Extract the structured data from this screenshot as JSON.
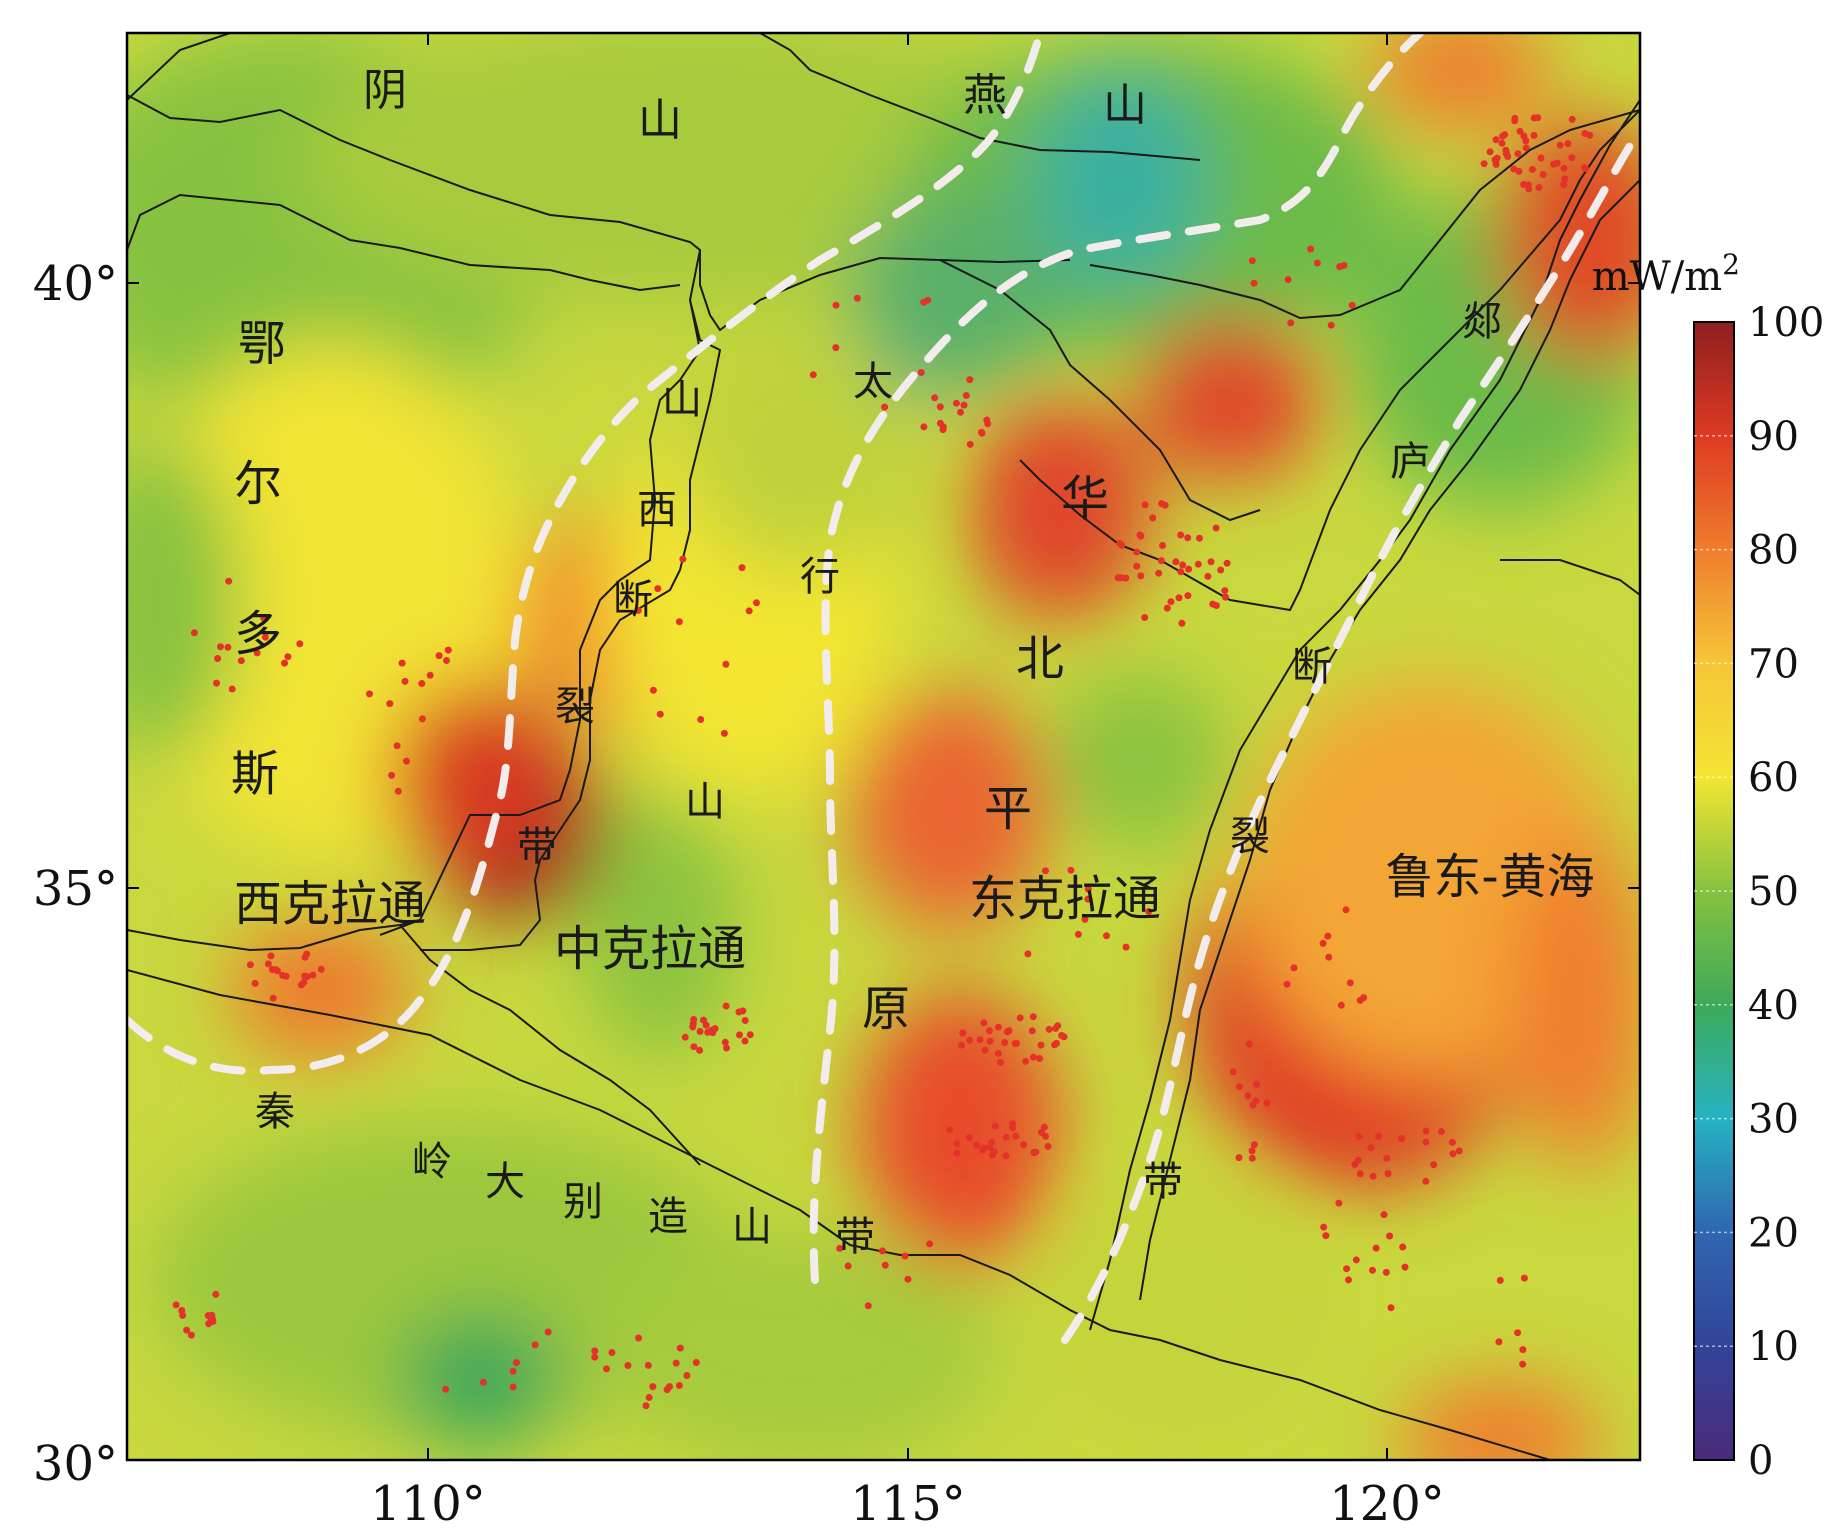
{
  "map": {
    "axis": {
      "x_ticks": [
        "110°",
        "115°",
        "120°"
      ],
      "y_ticks": [
        "40°",
        "35°",
        "30°"
      ]
    },
    "colorbar": {
      "unit_text": "mW/m",
      "unit_sup": "2",
      "ticks": [
        "100",
        "90",
        "80",
        "70",
        "60",
        "50",
        "40",
        "30",
        "20",
        "10",
        "0"
      ],
      "range": [
        0,
        100
      ],
      "colors": [
        "#4a2b7a",
        "#31449a",
        "#2a83bf",
        "#26b3c2",
        "#3daa59",
        "#86c23f",
        "#f3e533",
        "#f6c637",
        "#ef7d2d",
        "#de3a23",
        "#8e1f1f"
      ]
    },
    "labels": {
      "yinshan_1": "阴",
      "yinshan_2": "山",
      "yanshan_1": "燕",
      "yanshan_2": "山",
      "ordos_1": "鄂",
      "ordos_2": "尔",
      "ordos_3": "多",
      "ordos_4": "斯",
      "fw_1": "山",
      "fw_2": "西",
      "fw_3": "断",
      "fw_4": "裂",
      "fw_5": "带",
      "shanxi_mid": "山",
      "taihang_1": "太",
      "taihang_2": "行",
      "ncp_1": "华",
      "ncp_2": "北",
      "ncp_3": "平",
      "ncp_4": "原",
      "tl_1": "郯",
      "tl_2": "庐",
      "tl_3": "断",
      "tl_4": "裂",
      "tl_5": "带",
      "west_craton": "西克拉通",
      "central_craton": "中克拉通",
      "east_craton": "东克拉通",
      "ludong": "鲁东-黄海",
      "qd_1": "秦",
      "qd_2": "岭",
      "qd_3": "大",
      "qd_4": "别",
      "qd_5": "造",
      "qd_6": "山",
      "qd_7": "带"
    }
  }
}
